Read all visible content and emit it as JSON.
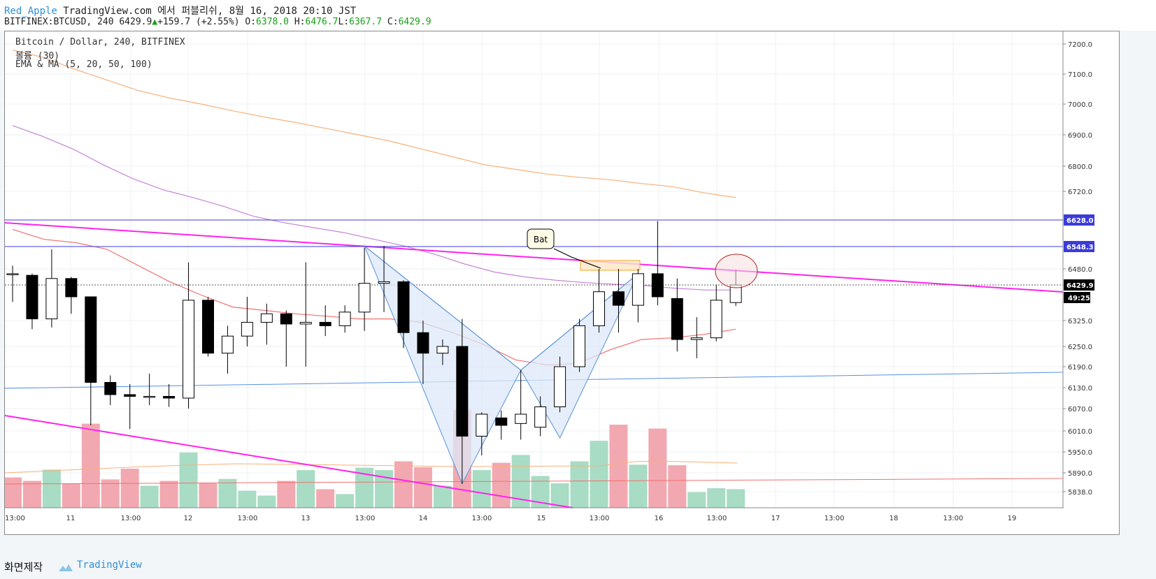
{
  "header": {
    "username": "Red_Apple",
    "publish_text": "TradingView.com 에서 퍼블리쉬, 8월 16, 2018 20:10 JST",
    "symbol_line": "BITFINEX:BTCUSD, 240 6429.9",
    "change_arrow": "▲",
    "change": "+159.7 (+2.55%)",
    "o_label": "O:",
    "o_value": "6378.0",
    "h_label": "H:",
    "h_value": "6476.7",
    "l_label": "L:",
    "l_value": "6367.7",
    "c_label": "C:",
    "c_value": "6429.9"
  },
  "legend": {
    "title": "Bitcoin / Dollar, 240, BITFINEX",
    "volume": "볼륨 (30)",
    "ma": "EMA & MA (5, 20, 50, 100)"
  },
  "footer": {
    "label": "화면제작",
    "brand": "TradingView"
  },
  "colors": {
    "up_candle": "#ffffff",
    "down_candle": "#000000",
    "vol_up": "#a8dcc4",
    "vol_down": "#f2a8b0",
    "ma_orange": "#f7b07a",
    "ma_purple": "#c683d6",
    "ma_red": "#f07070",
    "trend_magenta": "#ff22ee",
    "hline_blue": "#3b3bdb",
    "trend_blue": "#5590e8",
    "pattern_fill": "#dce8f8",
    "pattern_stroke": "#5a92d6"
  },
  "chart_data": {
    "type": "candlestick",
    "timeframe": "240",
    "x_tick_labels": [
      "13:00",
      "11",
      "13:00",
      "12",
      "13:00",
      "13",
      "13:00",
      "14",
      "13:00",
      "15",
      "13:00",
      "16",
      "13:00",
      "17",
      "13:00",
      "18",
      "13:00",
      "19"
    ],
    "y_tick_labels": [
      "7200.0",
      "7100.0",
      "7000.0",
      "6900.0",
      "6800.0",
      "6720.0",
      "6480.0",
      "6325.0",
      "6250.0",
      "6190.0",
      "6130.0",
      "6070.0",
      "6010.0",
      "5950.0",
      "5890.0",
      "5838.0"
    ],
    "candles": [
      {
        "o": 6465,
        "h": 6490,
        "l": 6380,
        "c": 6465
      },
      {
        "o": 6460,
        "h": 6465,
        "l": 6300,
        "c": 6330
      },
      {
        "o": 6330,
        "h": 6540,
        "l": 6305,
        "c": 6450
      },
      {
        "o": 6450,
        "h": 6455,
        "l": 6345,
        "c": 6395
      },
      {
        "o": 6395,
        "h": 6395,
        "l": 6025,
        "c": 6145
      },
      {
        "o": 6145,
        "h": 6165,
        "l": 6080,
        "c": 6110
      },
      {
        "o": 6110,
        "h": 6140,
        "l": 6015,
        "c": 6105
      },
      {
        "o": 6105,
        "h": 6170,
        "l": 6080,
        "c": 6105
      },
      {
        "o": 6105,
        "h": 6140,
        "l": 6075,
        "c": 6100
      },
      {
        "o": 6100,
        "h": 6500,
        "l": 6070,
        "c": 6385
      },
      {
        "o": 6385,
        "h": 6395,
        "l": 6220,
        "c": 6230
      },
      {
        "o": 6230,
        "h": 6310,
        "l": 6170,
        "c": 6280
      },
      {
        "o": 6280,
        "h": 6395,
        "l": 6250,
        "c": 6320
      },
      {
        "o": 6320,
        "h": 6375,
        "l": 6255,
        "c": 6345
      },
      {
        "o": 6345,
        "h": 6355,
        "l": 6190,
        "c": 6315
      },
      {
        "o": 6315,
        "h": 6500,
        "l": 6190,
        "c": 6320
      },
      {
        "o": 6320,
        "h": 6370,
        "l": 6280,
        "c": 6310
      },
      {
        "o": 6310,
        "h": 6370,
        "l": 6290,
        "c": 6350
      },
      {
        "o": 6350,
        "h": 6545,
        "l": 6295,
        "c": 6435
      },
      {
        "o": 6435,
        "h": 6550,
        "l": 6350,
        "c": 6440
      },
      {
        "o": 6440,
        "h": 6445,
        "l": 6245,
        "c": 6290
      },
      {
        "o": 6290,
        "h": 6325,
        "l": 6140,
        "c": 6230
      },
      {
        "o": 6230,
        "h": 6270,
        "l": 6195,
        "c": 6250
      },
      {
        "o": 6250,
        "h": 6330,
        "l": 5860,
        "c": 5995
      },
      {
        "o": 5995,
        "h": 6060,
        "l": 5940,
        "c": 6055
      },
      {
        "o": 6045,
        "h": 6065,
        "l": 5985,
        "c": 6025
      },
      {
        "o": 6030,
        "h": 6180,
        "l": 5985,
        "c": 6055
      },
      {
        "o": 6020,
        "h": 6105,
        "l": 5995,
        "c": 6075
      },
      {
        "o": 6075,
        "h": 6220,
        "l": 6060,
        "c": 6190
      },
      {
        "o": 6190,
        "h": 6330,
        "l": 6175,
        "c": 6310
      },
      {
        "o": 6310,
        "h": 6480,
        "l": 6290,
        "c": 6410
      },
      {
        "o": 6410,
        "h": 6480,
        "l": 6290,
        "c": 6370
      },
      {
        "o": 6370,
        "h": 6480,
        "l": 6320,
        "c": 6465
      },
      {
        "o": 6465,
        "h": 6625,
        "l": 6370,
        "c": 6395
      },
      {
        "o": 6390,
        "h": 6450,
        "l": 6235,
        "c": 6270
      },
      {
        "o": 6270,
        "h": 6335,
        "l": 6215,
        "c": 6275
      },
      {
        "o": 6275,
        "h": 6430,
        "l": 6265,
        "c": 6385
      },
      {
        "o": 6378,
        "h": 6476.7,
        "l": 6367.7,
        "c": 6429.9
      }
    ],
    "volume": [
      {
        "v": 0.62,
        "up": false
      },
      {
        "v": 0.55,
        "up": false
      },
      {
        "v": 0.78,
        "up": true
      },
      {
        "v": 0.5,
        "up": false
      },
      {
        "v": 1.72,
        "up": false
      },
      {
        "v": 0.58,
        "up": false
      },
      {
        "v": 0.8,
        "up": false
      },
      {
        "v": 0.45,
        "up": true
      },
      {
        "v": 0.55,
        "up": false
      },
      {
        "v": 1.13,
        "up": true
      },
      {
        "v": 0.5,
        "up": false
      },
      {
        "v": 0.59,
        "up": true
      },
      {
        "v": 0.35,
        "up": true
      },
      {
        "v": 0.25,
        "up": true
      },
      {
        "v": 0.55,
        "up": false
      },
      {
        "v": 0.77,
        "up": true
      },
      {
        "v": 0.38,
        "up": false
      },
      {
        "v": 0.28,
        "up": true
      },
      {
        "v": 0.82,
        "up": true
      },
      {
        "v": 0.77,
        "up": true
      },
      {
        "v": 0.95,
        "up": false
      },
      {
        "v": 0.83,
        "up": false
      },
      {
        "v": 0.45,
        "up": true
      },
      {
        "v": 2.0,
        "up": false
      },
      {
        "v": 0.77,
        "up": true
      },
      {
        "v": 0.92,
        "up": false
      },
      {
        "v": 1.08,
        "up": true
      },
      {
        "v": 0.65,
        "up": true
      },
      {
        "v": 0.5,
        "up": true
      },
      {
        "v": 0.95,
        "up": true
      },
      {
        "v": 1.37,
        "up": true
      },
      {
        "v": 1.7,
        "up": false
      },
      {
        "v": 0.88,
        "up": true
      },
      {
        "v": 1.62,
        "up": false
      },
      {
        "v": 0.87,
        "up": false
      },
      {
        "v": 0.32,
        "up": true
      },
      {
        "v": 0.4,
        "up": true
      },
      {
        "v": 0.38,
        "up": true
      }
    ],
    "ma_orange": [
      7180,
      7155,
      7115,
      7080,
      7045,
      7020,
      7000,
      6978,
      6958,
      6940,
      6920,
      6900,
      6880,
      6855,
      6830,
      6805,
      6790,
      6775,
      6765,
      6757,
      6745,
      6735,
      6715,
      6700
    ],
    "ma_purple": [
      6930,
      6895,
      6855,
      6805,
      6760,
      6725,
      6700,
      6672,
      6640,
      6620,
      6605,
      6590,
      6570,
      6550,
      6525,
      6495,
      6470,
      6455,
      6445,
      6437,
      6432,
      6428,
      6420,
      6415,
      6415
    ],
    "ma_red": [
      6600,
      6570,
      6560,
      6540,
      6490,
      6440,
      6400,
      6365,
      6355,
      6345,
      6338,
      6330,
      6330,
      6320,
      6290,
      6255,
      6210,
      6195,
      6200,
      6240,
      6270,
      6275,
      6285,
      6300
    ],
    "horizontal_lines": [
      {
        "value": 6628.0,
        "label": "6628.0"
      },
      {
        "value": 6548.3,
        "label": "6548.3"
      }
    ],
    "last_price": {
      "value": 6429.9,
      "label": "6429.9",
      "countdown": "49:25"
    },
    "pattern": {
      "name": "Bat",
      "points": [
        6550,
        5860,
        6180,
        5990,
        6465
      ]
    },
    "annotation": "Bat",
    "grid": true
  }
}
